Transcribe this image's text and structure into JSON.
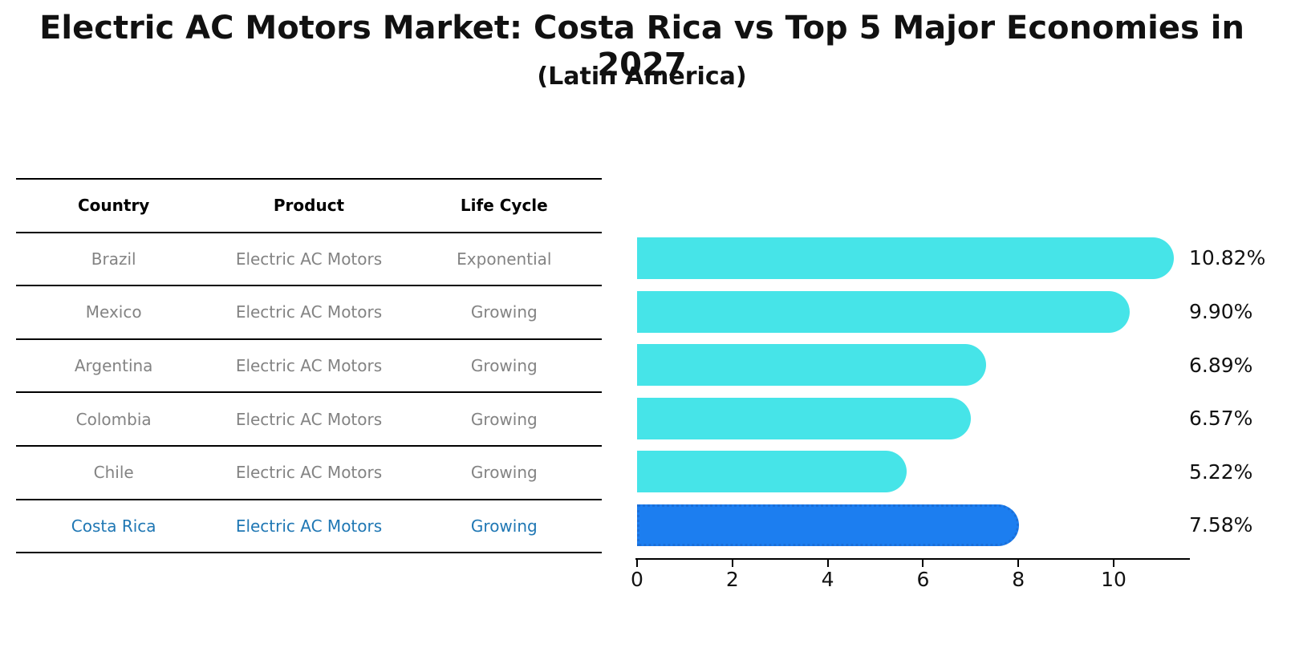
{
  "title": "Electric AC Motors Market: Costa Rica vs Top 5 Major Economies in 2027",
  "subtitle": "(Latin America)",
  "table": {
    "headers": [
      "Country",
      "Product",
      "Life Cycle"
    ],
    "text_color": "#838383",
    "highlight_text_color": "#1f77b4",
    "line_color": "#000000",
    "rows": [
      {
        "country": "Brazil",
        "product": "Electric AC Motors",
        "life_cycle": "Exponential",
        "highlight": false
      },
      {
        "country": "Mexico",
        "product": "Electric AC Motors",
        "life_cycle": "Growing",
        "highlight": false
      },
      {
        "country": "Argentina",
        "product": "Electric AC Motors",
        "life_cycle": "Growing",
        "highlight": false
      },
      {
        "country": "Colombia",
        "product": "Electric AC Motors",
        "life_cycle": "Growing",
        "highlight": false
      },
      {
        "country": "Chile",
        "product": "Electric AC Motors",
        "life_cycle": "Growing",
        "highlight": false
      },
      {
        "country": "Costa Rica",
        "product": "Electric AC Motors",
        "life_cycle": "Growing",
        "highlight": true
      }
    ]
  },
  "chart_data": {
    "type": "bar",
    "orientation": "horizontal",
    "categories": [
      "Brazil",
      "Mexico",
      "Argentina",
      "Colombia",
      "Chile",
      "Costa Rica"
    ],
    "values": [
      10.82,
      9.9,
      6.89,
      6.57,
      5.22,
      7.58
    ],
    "labels": [
      "10.82%",
      "9.90%",
      "6.89%",
      "6.57%",
      "5.22%",
      "7.58%"
    ],
    "x_ticks": [
      0,
      2,
      4,
      6,
      8,
      10
    ],
    "xlim": [
      0,
      11.6
    ],
    "grid": false,
    "legend": "none",
    "bar_color": "#46e4e8",
    "highlight_index": 5,
    "highlight_color": "#1c7ef0",
    "highlight_border": "#1b6fd8",
    "value_label_color": "#111111",
    "axis_color": "#000000"
  }
}
